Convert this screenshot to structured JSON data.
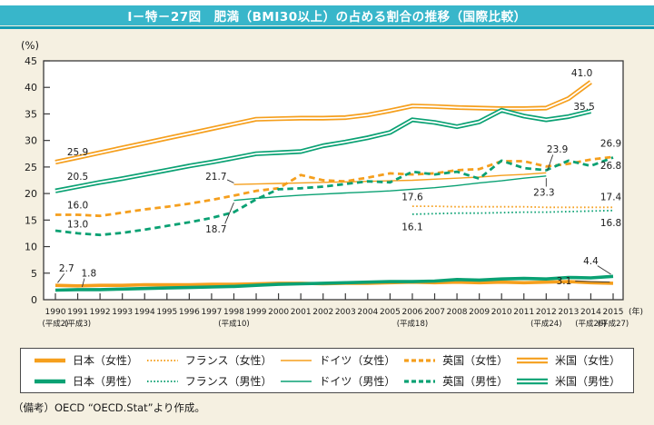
{
  "header": {
    "title": "Ⅰ－特－27図　肥満（BMI30以上）の占める割合の推移（国際比較）"
  },
  "footnote": "（備考）OECD “OECD.Stat”より作成。",
  "colors": {
    "female_line": "#f59f1d",
    "male_line": "#0aa173",
    "header_bg": "#38b6ca",
    "header_rule": "#129cb4",
    "page_bg": "#f5f0e1",
    "plot_bg": "#ffffff",
    "axis": "#3a3a3a",
    "label_text": "#1a1a1a"
  },
  "chart_data": {
    "type": "line",
    "unit_label": "(%)",
    "year_suffix": "(年)",
    "x": {
      "min": 1990,
      "max": 2015,
      "era_labels": {
        "1990": "(平成2)",
        "1991": "(平成3)",
        "1998": "(平成10)",
        "2006": "(平成18)",
        "2012": "(平成24)",
        "2014": "(平成26)",
        "2015": "(平成27)"
      }
    },
    "y": {
      "min": 0,
      "max": 45,
      "step": 5
    },
    "series": [
      {
        "id": "germany_w",
        "label": "ドイツ（女性）",
        "sex": "female",
        "style": "thin",
        "start": 1998,
        "values": [
          21.7,
          21.8,
          21.9,
          22.0,
          22.1,
          22.2,
          22.3,
          22.4,
          22.5,
          22.7,
          22.9,
          23.1,
          23.4,
          23.6,
          23.9
        ]
      },
      {
        "id": "germany_m",
        "label": "ドイツ（男性）",
        "sex": "male",
        "style": "thin",
        "start": 1998,
        "values": [
          18.7,
          19.1,
          19.4,
          19.7,
          19.9,
          20.1,
          20.3,
          20.5,
          20.8,
          21.1,
          21.5,
          22.0,
          22.4,
          22.9,
          23.3
        ]
      },
      {
        "id": "france_w",
        "label": "フランス（女性）",
        "sex": "female",
        "style": "dotted",
        "start": 2006,
        "values": [
          17.6,
          17.6,
          17.5,
          17.5,
          17.5,
          17.5,
          17.4,
          17.4,
          17.4,
          17.4
        ]
      },
      {
        "id": "france_m",
        "label": "フランス（男性）",
        "sex": "male",
        "style": "dotted",
        "start": 2006,
        "values": [
          16.1,
          16.2,
          16.3,
          16.3,
          16.4,
          16.5,
          16.5,
          16.6,
          16.7,
          16.8
        ]
      },
      {
        "id": "uk_w",
        "label": "英国（女性）",
        "sex": "female",
        "style": "dashed",
        "start": 1990,
        "values": [
          16.0,
          16.0,
          15.8,
          16.4,
          17.0,
          17.5,
          18.1,
          18.8,
          19.6,
          20.5,
          21.0,
          23.5,
          22.5,
          22.3,
          23.0,
          23.8,
          23.6,
          23.8,
          24.4,
          24.6,
          26.1,
          26.1,
          25.1,
          25.6,
          26.4,
          26.9
        ]
      },
      {
        "id": "uk_m",
        "label": "英国（男性）",
        "sex": "male",
        "style": "dashed",
        "start": 1990,
        "values": [
          13.0,
          12.5,
          12.2,
          12.6,
          13.2,
          13.9,
          14.6,
          15.4,
          16.5,
          18.9,
          20.8,
          21.0,
          21.3,
          21.8,
          22.3,
          22.1,
          24.1,
          23.6,
          24.1,
          22.8,
          26.2,
          24.8,
          24.4,
          26.2,
          25.2,
          26.8
        ]
      },
      {
        "id": "us_w",
        "label": "米国（女性）",
        "sex": "female",
        "style": "double",
        "start": 1990,
        "values": [
          25.9,
          26.8,
          27.7,
          28.6,
          29.5,
          30.4,
          31.3,
          32.2,
          33.1,
          34.0,
          34.1,
          34.2,
          34.2,
          34.3,
          34.8,
          35.6,
          36.5,
          36.4,
          36.2,
          36.1,
          36.0,
          36.0,
          36.1,
          37.9,
          41.0
        ]
      },
      {
        "id": "us_m",
        "label": "米国（男性）",
        "sex": "male",
        "style": "double",
        "start": 1990,
        "values": [
          20.5,
          21.3,
          22.1,
          22.8,
          23.6,
          24.4,
          25.2,
          25.9,
          26.7,
          27.5,
          27.7,
          27.9,
          29.0,
          29.7,
          30.5,
          31.5,
          33.9,
          33.4,
          32.6,
          33.5,
          35.7,
          34.6,
          33.9,
          34.5,
          35.5
        ]
      },
      {
        "id": "japan_w",
        "label": "日本（女性）",
        "sex": "female",
        "style": "thick",
        "start": 1990,
        "values": [
          2.7,
          2.6,
          2.7,
          2.7,
          2.8,
          2.8,
          2.8,
          2.9,
          2.9,
          3.0,
          3.1,
          3.1,
          3.0,
          3.1,
          3.1,
          3.2,
          3.3,
          3.2,
          3.3,
          3.2,
          3.3,
          3.2,
          3.3,
          3.4,
          3.2,
          3.1
        ]
      },
      {
        "id": "japan_m",
        "label": "日本（男性）",
        "sex": "male",
        "style": "thick",
        "start": 1990,
        "values": [
          1.8,
          1.9,
          1.9,
          2.0,
          2.1,
          2.2,
          2.3,
          2.4,
          2.5,
          2.7,
          2.9,
          3.0,
          3.1,
          3.2,
          3.3,
          3.4,
          3.4,
          3.5,
          3.8,
          3.7,
          3.9,
          4.0,
          3.9,
          4.2,
          4.1,
          4.4
        ]
      }
    ],
    "annotations": [
      {
        "text": "25.9",
        "year": 1991.0,
        "value": 27.8
      },
      {
        "text": "20.5",
        "year": 1991.0,
        "value": 23.2
      },
      {
        "text": "16.0",
        "year": 1991.0,
        "value": 17.8
      },
      {
        "text": "13.0",
        "year": 1991.0,
        "value": 14.2
      },
      {
        "text": "2.7",
        "year": 1990.5,
        "value": 5.9,
        "leader": [
          1990.4,
          4.9,
          1990.1,
          3.2
        ]
      },
      {
        "text": "1.8",
        "year": 1991.5,
        "value": 5.0,
        "leader": [
          1991.3,
          4.0,
          1991.2,
          2.4
        ]
      },
      {
        "text": "21.7",
        "year": 1997.2,
        "value": 23.2,
        "leader": [
          1997.7,
          22.6,
          1998.0,
          22.0
        ]
      },
      {
        "text": "18.7",
        "year": 1997.2,
        "value": 13.3,
        "leader": [
          1997.6,
          14.3,
          1998.0,
          18.3
        ]
      },
      {
        "text": "17.6",
        "year": 2006.0,
        "value": 19.3
      },
      {
        "text": "16.1",
        "year": 2006.0,
        "value": 13.7
      },
      {
        "text": "23.9",
        "year": 2012.5,
        "value": 28.3,
        "leader": [
          2012.3,
          27.3,
          2012.05,
          24.3
        ]
      },
      {
        "text": "23.3",
        "year": 2011.9,
        "value": 20.2,
        "leader": [
          2012.0,
          22.9,
          2012.0,
          21.3
        ]
      },
      {
        "text": "41.0",
        "year": 2013.6,
        "value": 42.7
      },
      {
        "text": "35.5",
        "year": 2013.7,
        "value": 36.4
      },
      {
        "text": "26.9",
        "year": 2014.9,
        "value": 29.4
      },
      {
        "text": "26.8",
        "year": 2014.9,
        "value": 25.2
      },
      {
        "text": "17.4",
        "year": 2014.9,
        "value": 19.3
      },
      {
        "text": "16.8",
        "year": 2014.9,
        "value": 14.5
      },
      {
        "text": "4.4",
        "year": 2014.0,
        "value": 7.3,
        "leader": [
          2014.3,
          6.4,
          2014.9,
          4.8
        ]
      },
      {
        "text": "3.1",
        "year": 2012.8,
        "value": 3.5,
        "leader": [
          2013.3,
          3.5,
          2014.85,
          3.3
        ]
      }
    ],
    "legend_order": [
      "japan_w",
      "france_w",
      "germany_w",
      "uk_w",
      "us_w",
      "japan_m",
      "france_m",
      "germany_m",
      "uk_m",
      "us_m"
    ]
  }
}
